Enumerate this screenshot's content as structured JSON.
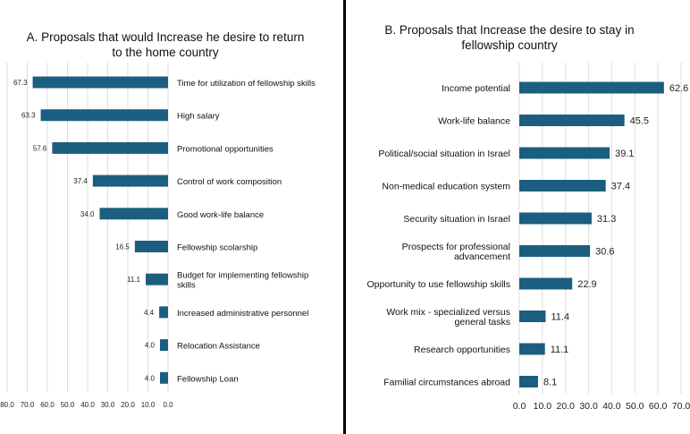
{
  "chart_data": [
    {
      "type": "bar",
      "orientation": "horizontal",
      "direction": "reversed",
      "title": "A. Proposals that would Increase he desire to return to the home country",
      "title_lines": [
        "A. Proposals that would Increase he desire to return",
        "to the home country"
      ],
      "categories": [
        "Time for utilization of fellowship skills",
        "High salary",
        "Promotional opportunities",
        "Control of work composition",
        "Good work-life balance",
        "Fellowship scolarship",
        "Budget for implementing fellowship skills",
        "Increased administrative personnel",
        "Relocation Assistance",
        "Fellowship Loan"
      ],
      "category_lines": [
        [
          "Time for utilization of fellowship skills"
        ],
        [
          "High salary"
        ],
        [
          "Promotional opportunities"
        ],
        [
          "Control of work composition"
        ],
        [
          "Good work-life balance"
        ],
        [
          "Fellowship scolarship"
        ],
        [
          "Budget for implementing fellowship",
          "skills"
        ],
        [
          "Increased administrative personnel"
        ],
        [
          "Relocation Assistance"
        ],
        [
          "Fellowship Loan"
        ]
      ],
      "values": [
        67.3,
        63.3,
        57.6,
        37.4,
        34.0,
        16.5,
        11.1,
        4.4,
        4.0,
        4.0
      ],
      "value_labels": [
        "67.3",
        "63.3",
        "57.6",
        "37.4",
        "34.0",
        "16.5",
        "11.1",
        "4.4",
        "4.0",
        "4.0"
      ],
      "xlim": [
        0,
        80
      ],
      "xticks": [
        80,
        70,
        60,
        50,
        40,
        30,
        20,
        10,
        0
      ],
      "xtick_labels": [
        "80.0",
        "70.0",
        "60.0",
        "50.0",
        "40.0",
        "30.0",
        "20.0",
        "10.0",
        "0.0"
      ],
      "grid": true,
      "bar_color": "#1b5e7f"
    },
    {
      "type": "bar",
      "orientation": "horizontal",
      "direction": "normal",
      "title": "B. Proposals that Increase the desire to stay in fellowship country",
      "title_lines": [
        "B. Proposals that Increase the desire to stay in",
        "fellowship country"
      ],
      "categories": [
        "Income potential",
        "Work-life balance",
        "Political/social situation in Israel",
        "Non-medical education system",
        "Security situation in Israel",
        "Prospects for professional advancement",
        "Opportunity to use fellowship skills",
        "Work mix - specialized versus general tasks",
        "Research opportunities",
        "Familial circumstances abroad"
      ],
      "category_lines": [
        [
          "Income potential"
        ],
        [
          "Work-life balance"
        ],
        [
          "Political/social situation in Israel"
        ],
        [
          "Non-medical education system"
        ],
        [
          "Security situation in Israel"
        ],
        [
          "Prospects for professional",
          "advancement"
        ],
        [
          "Opportunity to use fellowship skills"
        ],
        [
          "Work mix - specialized  versus",
          "general tasks"
        ],
        [
          "Research opportunities"
        ],
        [
          "Familial circumstances abroad"
        ]
      ],
      "values": [
        62.6,
        45.5,
        39.1,
        37.4,
        31.3,
        30.6,
        22.9,
        11.4,
        11.1,
        8.1
      ],
      "value_labels": [
        "62.6",
        "45.5",
        "39.1",
        "37.4",
        "31.3",
        "30.6",
        "22.9",
        "11.4",
        "11.1",
        "8.1"
      ],
      "xlim": [
        0,
        70
      ],
      "xticks": [
        0,
        10,
        20,
        30,
        40,
        50,
        60,
        70
      ],
      "xtick_labels": [
        "0.0",
        "10.0",
        "20.0",
        "30.0",
        "40.0",
        "50.0",
        "60.0",
        "70.0"
      ],
      "grid": true,
      "bar_color": "#1b5e7f"
    }
  ]
}
